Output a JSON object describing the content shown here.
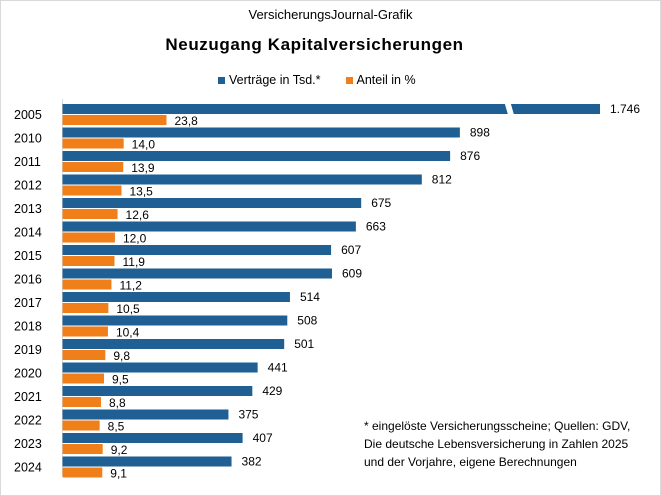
{
  "source": "VersicherungsJournal-Grafik",
  "title": "Neuzugang Kapitalversicherungen",
  "colors": {
    "vertraege": "#1f5f93",
    "anteil": "#f07f1a",
    "axis": "#d9d9d9"
  },
  "footnote": "* eingelöste Versicherungsscheine;  Quellen: GDV, Die deutsche Lebensversicherung  in Zahlen 2025 und der Vorjahre, eigene Berechnungen",
  "chart_data": {
    "type": "bar",
    "orientation": "horizontal",
    "categories": [
      "2005",
      "2010",
      "2011",
      "2012",
      "2013",
      "2014",
      "2015",
      "2016",
      "2017",
      "2018",
      "2019",
      "2020",
      "2021",
      "2022",
      "2023",
      "2024"
    ],
    "series": [
      {
        "name": "Verträge in Tsd.*",
        "values": [
          1746,
          898,
          876,
          812,
          675,
          663,
          607,
          609,
          514,
          508,
          501,
          441,
          429,
          375,
          407,
          382
        ],
        "labels": [
          "1.746",
          "898",
          "876",
          "812",
          "675",
          "663",
          "607",
          "609",
          "514",
          "508",
          "501",
          "441",
          "429",
          "375",
          "407",
          "382"
        ],
        "axis_break_on": "2005"
      },
      {
        "name": "Anteil in %",
        "values": [
          23.8,
          14.0,
          13.9,
          13.5,
          12.6,
          12.0,
          11.9,
          11.2,
          10.5,
          10.4,
          9.8,
          9.5,
          8.8,
          8.5,
          9.2,
          9.1
        ],
        "labels": [
          "23,8",
          "14,0",
          "13,9",
          "13,5",
          "12,6",
          "12,0",
          "11,9",
          "11,2",
          "10,5",
          "10,4",
          "9,8",
          "9,5",
          "8,8",
          "8,5",
          "9,2",
          "9,1"
        ]
      }
    ],
    "legend_position": "top",
    "grid": false
  }
}
